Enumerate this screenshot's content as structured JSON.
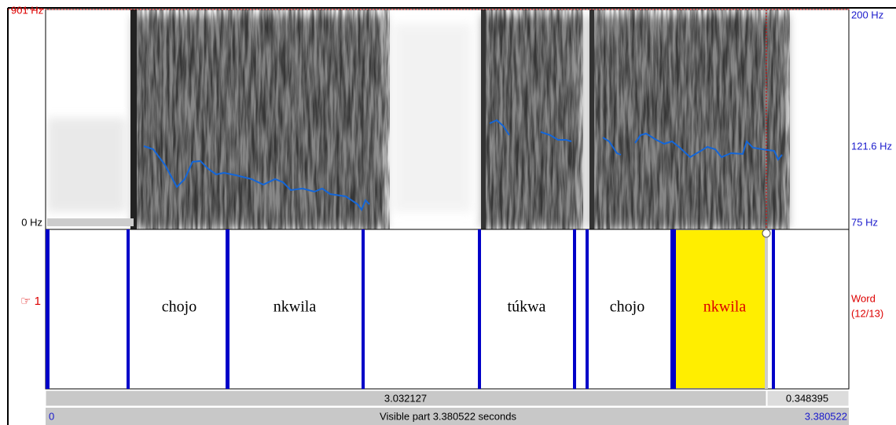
{
  "spectrogram": {
    "left_top_label": "901 Hz",
    "left_bottom_label": "0 Hz",
    "right_labels": [
      "200 Hz",
      "121.6 Hz",
      "75 Hz"
    ]
  },
  "tier": {
    "number": "☞ 1",
    "name": "Word",
    "count": "(12/13)",
    "intervals": [
      "chojo",
      "nkwila",
      "túkwa",
      "chojo",
      "nkwila"
    ]
  },
  "footer": {
    "selection": "3.032127",
    "remaining": "0.348395",
    "start": "0",
    "visible": "Visible part 3.380522 seconds",
    "end": "3.380522"
  }
}
